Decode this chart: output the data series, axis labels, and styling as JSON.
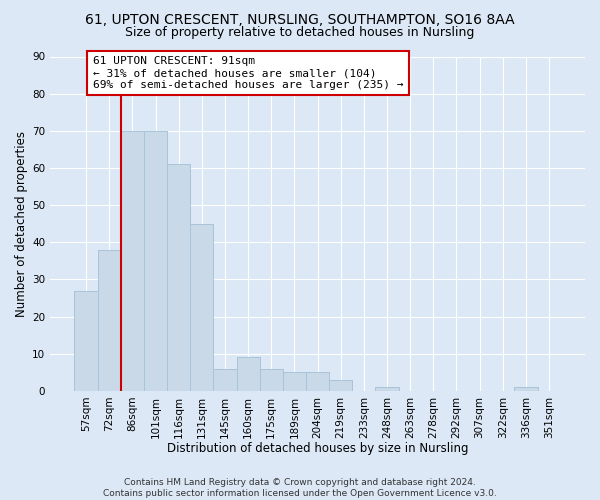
{
  "title": "61, UPTON CRESCENT, NURSLING, SOUTHAMPTON, SO16 8AA",
  "subtitle": "Size of property relative to detached houses in Nursling",
  "xlabel": "Distribution of detached houses by size in Nursling",
  "ylabel": "Number of detached properties",
  "footer_lines": [
    "Contains HM Land Registry data © Crown copyright and database right 2024.",
    "Contains public sector information licensed under the Open Government Licence v3.0."
  ],
  "bin_labels": [
    "57sqm",
    "72sqm",
    "86sqm",
    "101sqm",
    "116sqm",
    "131sqm",
    "145sqm",
    "160sqm",
    "175sqm",
    "189sqm",
    "204sqm",
    "219sqm",
    "233sqm",
    "248sqm",
    "263sqm",
    "278sqm",
    "292sqm",
    "307sqm",
    "322sqm",
    "336sqm",
    "351sqm"
  ],
  "bar_values": [
    27,
    38,
    70,
    70,
    61,
    45,
    6,
    9,
    6,
    5,
    5,
    3,
    0,
    1,
    0,
    0,
    0,
    0,
    0,
    1,
    0
  ],
  "bar_color": "#c9d9e8",
  "bar_edgecolor": "#a8c4d8",
  "ylim": [
    0,
    90
  ],
  "yticks": [
    0,
    10,
    20,
    30,
    40,
    50,
    60,
    70,
    80,
    90
  ],
  "vline_color": "#cc0000",
  "annotation_text": "61 UPTON CRESCENT: 91sqm\n← 31% of detached houses are smaller (104)\n69% of semi-detached houses are larger (235) →",
  "annotation_box_edgecolor": "#cc0000",
  "annotation_box_facecolor": "#ffffff",
  "bg_color": "#dce8f5",
  "plot_bg_color": "#dce8f5",
  "grid_color": "#ffffff",
  "title_fontsize": 10,
  "subtitle_fontsize": 9,
  "label_fontsize": 8.5,
  "tick_fontsize": 7.5,
  "annot_fontsize": 8,
  "footer_fontsize": 6.5
}
